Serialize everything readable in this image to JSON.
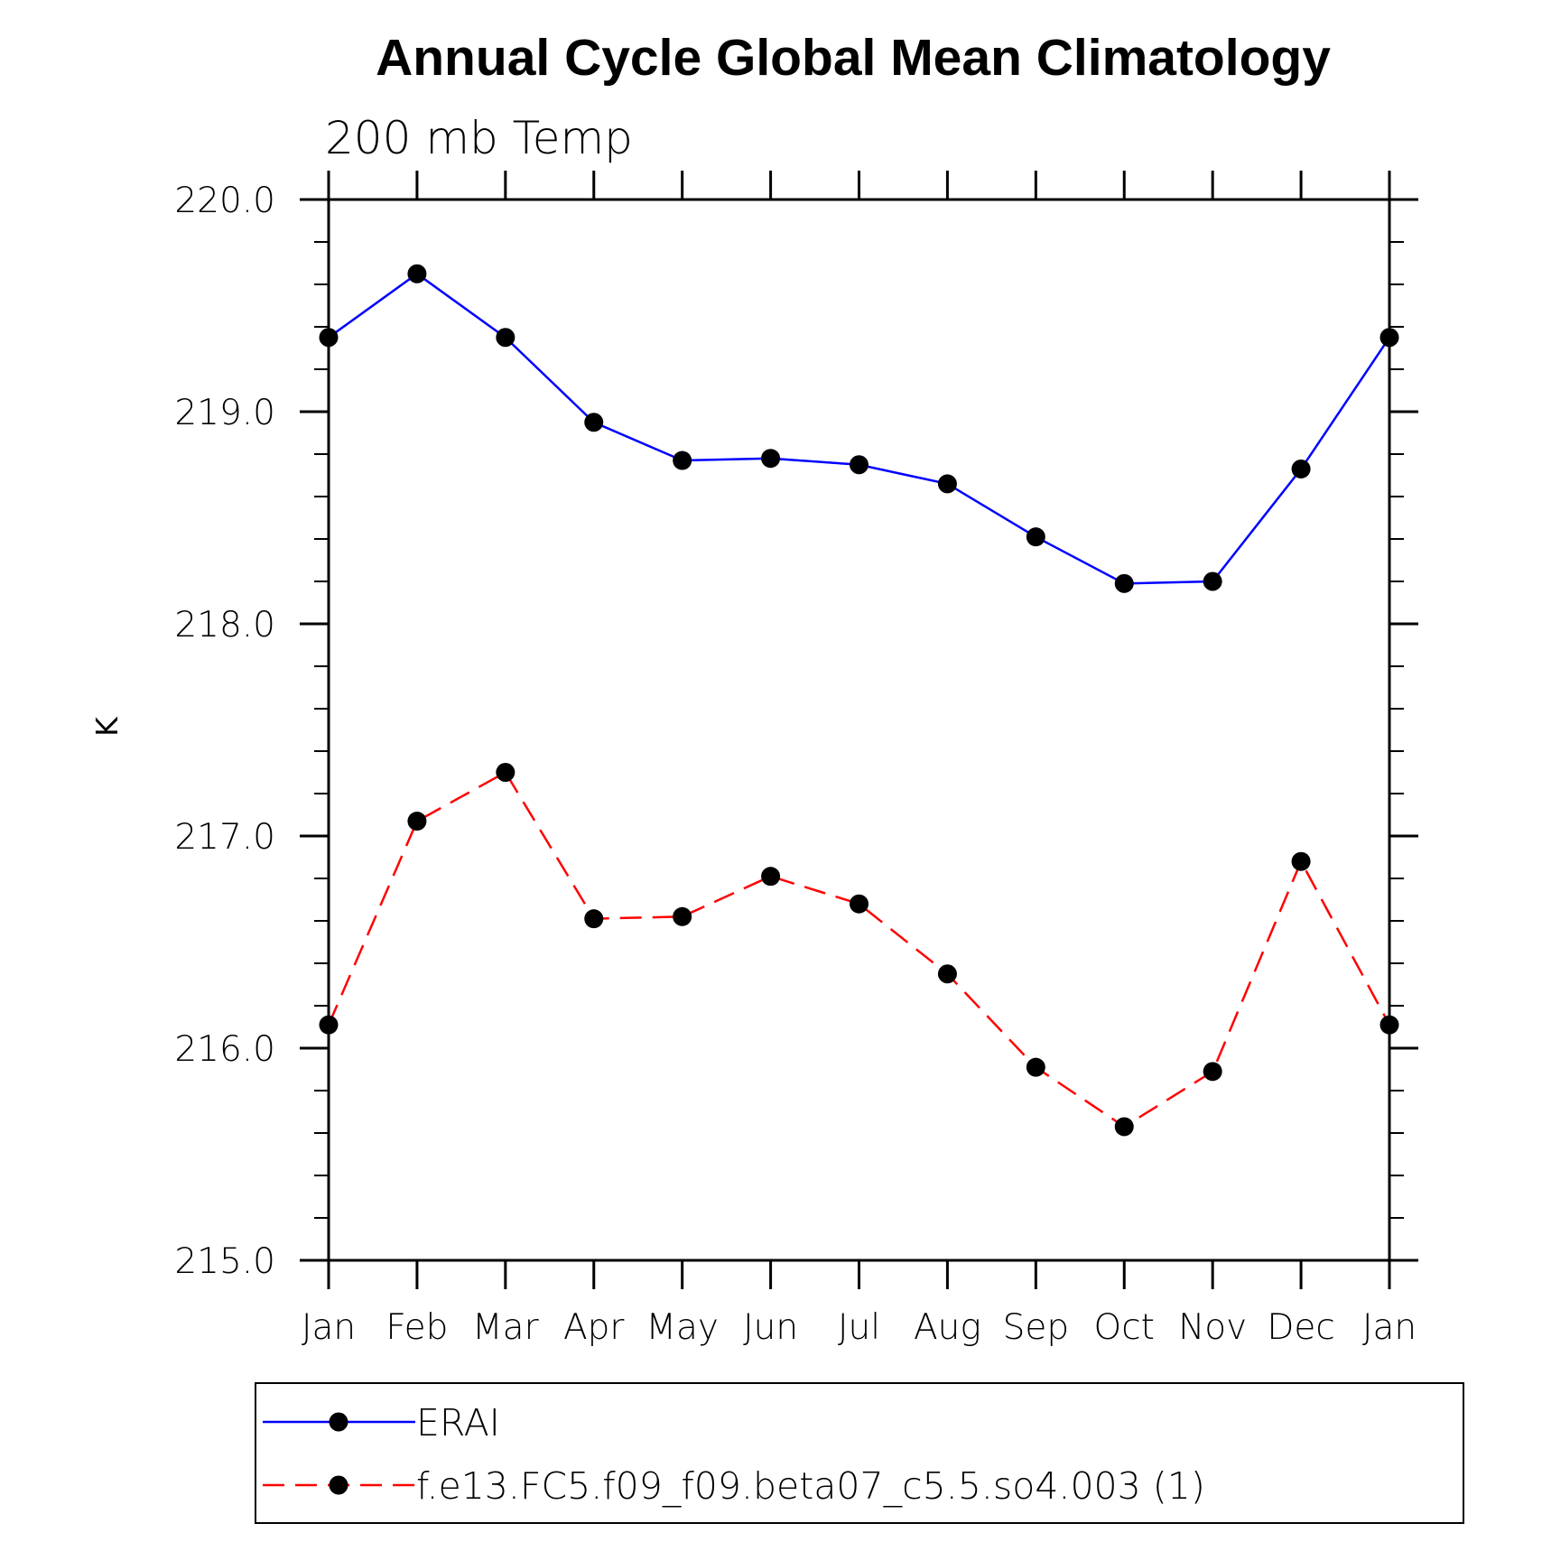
{
  "chart_data": {
    "type": "line",
    "title": "Annual Cycle Global Mean Climatology",
    "subtitle": "200 mb Temp",
    "xlabel": "",
    "ylabel": "K",
    "categories": [
      "Jan",
      "Feb",
      "Mar",
      "Apr",
      "May",
      "Jun",
      "Jul",
      "Aug",
      "Sep",
      "Oct",
      "Nov",
      "Dec",
      "Jan"
    ],
    "ylim": [
      215.0,
      220.0
    ],
    "y_ticks": [
      "215.0",
      "216.0",
      "217.0",
      "218.0",
      "219.0",
      "220.0"
    ],
    "y_minor_step": 0.2,
    "grid": false,
    "legend_position": "bottom",
    "series": [
      {
        "name": "ERAI",
        "color": "#0000ff",
        "dash": "solid",
        "marker": "filled-circle",
        "values": [
          219.35,
          219.65,
          219.35,
          218.95,
          218.77,
          218.78,
          218.75,
          218.66,
          218.41,
          218.19,
          218.2,
          218.73,
          219.35
        ]
      },
      {
        "name": "f.e13.FC5.f09_f09.beta07_c5.5.so4.003 (1)",
        "color": "#ff0000",
        "dash": "dashed",
        "marker": "filled-circle",
        "values": [
          216.11,
          217.07,
          217.3,
          216.61,
          216.62,
          216.81,
          216.68,
          216.35,
          215.91,
          215.63,
          215.89,
          216.88,
          216.11
        ]
      }
    ]
  }
}
